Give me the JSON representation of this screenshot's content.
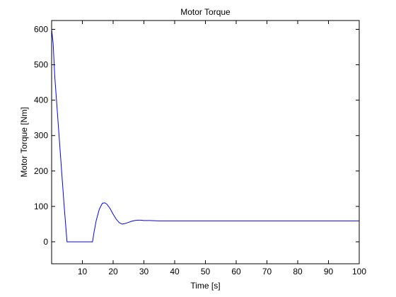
{
  "chart_data": {
    "type": "line",
    "title": "Motor Torque",
    "xlabel": "Time [s]",
    "ylabel": "Motor Torque [Nm]",
    "xlim": [
      0,
      100
    ],
    "ylim": [
      -62,
      625
    ],
    "xticks": [
      10,
      20,
      30,
      40,
      50,
      60,
      70,
      80,
      90,
      100
    ],
    "yticks": [
      0,
      100,
      200,
      300,
      400,
      500,
      600
    ],
    "xtick_labels": [
      "10",
      "20",
      "30",
      "40",
      "50",
      "60",
      "70",
      "80",
      "90",
      "100"
    ],
    "ytick_labels": [
      "0",
      "100",
      "200",
      "300",
      "400",
      "500",
      "600"
    ],
    "grid": false,
    "legend": "none",
    "line_color": "#0000ff",
    "series": [
      {
        "x": [
          0,
          0.5,
          1,
          2,
          3,
          4,
          5,
          5.5,
          6,
          8,
          10,
          12,
          13.3,
          13.8,
          14.5,
          15.5,
          16.5,
          17.3,
          18,
          19,
          20,
          21,
          22,
          23,
          24,
          25,
          26,
          27,
          28,
          29,
          30,
          32,
          35,
          40,
          60,
          80,
          100
        ],
        "y": [
          600,
          560,
          470,
          350,
          230,
          110,
          0,
          0,
          0,
          0,
          0,
          0,
          0,
          28,
          60,
          92,
          109,
          110,
          106,
          94,
          78,
          64,
          54,
          50,
          52,
          55,
          58,
          60,
          61,
          61,
          60,
          60,
          59,
          59,
          59,
          59,
          59
        ]
      }
    ]
  }
}
